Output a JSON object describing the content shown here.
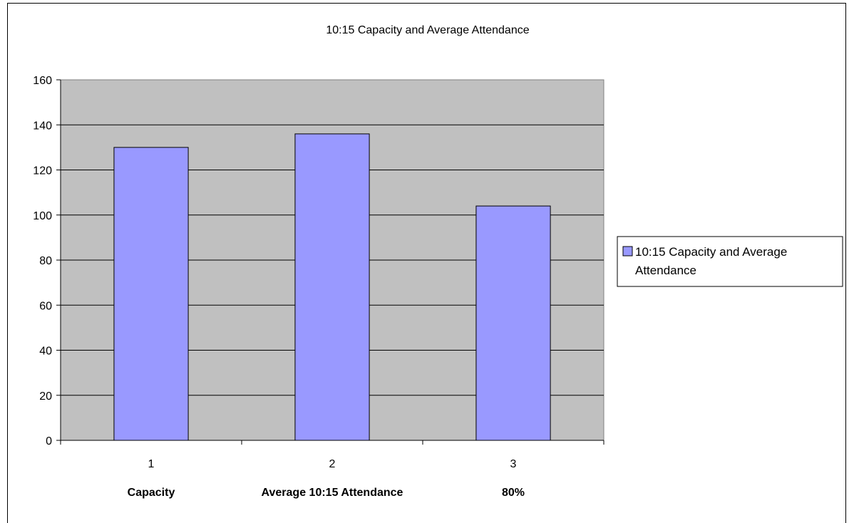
{
  "chart_data": {
    "type": "bar",
    "title": "10:15 Capacity and Average Attendance",
    "x": [
      "1",
      "2",
      "3"
    ],
    "categories": [
      "Capacity",
      "Average 10:15 Attendance",
      "80%"
    ],
    "series": [
      {
        "name": "10:15 Capacity and Average Attendance",
        "values": [
          130,
          136,
          104
        ],
        "color": "#9999ff"
      }
    ],
    "ylim": [
      0,
      160
    ],
    "yticks": [
      "0",
      "20",
      "40",
      "60",
      "80",
      "100",
      "120",
      "140",
      "160"
    ],
    "grid": true,
    "plot_background": "#c0c0c0",
    "legend": {
      "position": "right",
      "lines": [
        "10:15 Capacity and Average",
        "Attendance"
      ]
    }
  }
}
